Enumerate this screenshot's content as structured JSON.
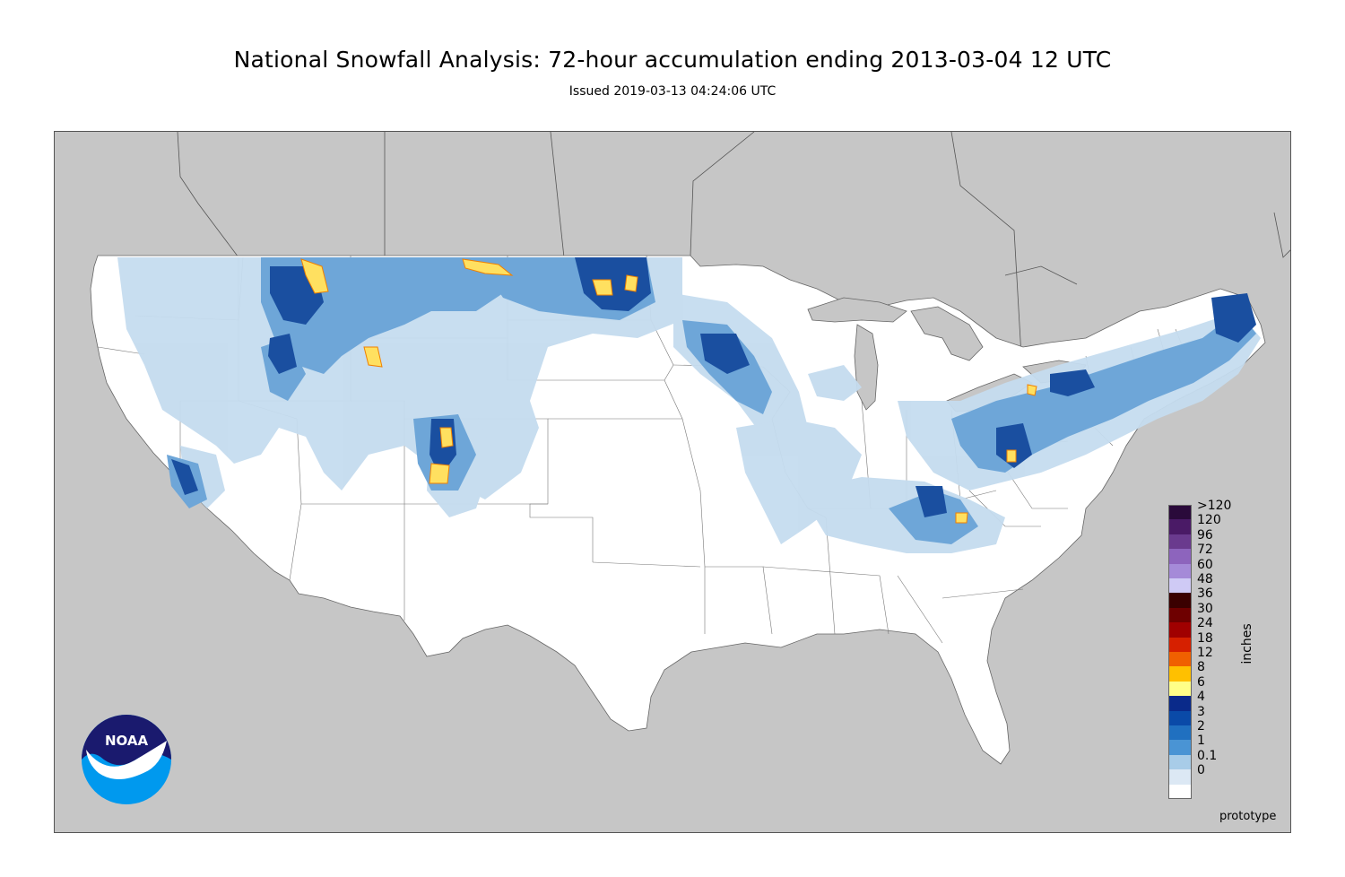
{
  "title": "National Snowfall Analysis: 72-hour accumulation ending 2013-03-04 12 UTC",
  "subtitle": "Issued 2019-03-13 04:24:06 UTC",
  "legend": {
    "unit": "inches",
    "items": [
      {
        "label": ">120",
        "color": "#2a0a3a"
      },
      {
        "label": "120",
        "color": "#4a1a66"
      },
      {
        "label": "96",
        "color": "#6a3a8e"
      },
      {
        "label": "72",
        "color": "#8d64bd"
      },
      {
        "label": "60",
        "color": "#a58ad8"
      },
      {
        "label": "48",
        "color": "#cfcaf5"
      },
      {
        "label": "36",
        "color": "#3a0000"
      },
      {
        "label": "30",
        "color": "#6e0000"
      },
      {
        "label": "24",
        "color": "#a00000"
      },
      {
        "label": "18",
        "color": "#d62000"
      },
      {
        "label": "12",
        "color": "#f06000"
      },
      {
        "label": "8",
        "color": "#ffc000"
      },
      {
        "label": "6",
        "color": "#ffff88"
      },
      {
        "label": "4",
        "color": "#0a2a8a"
      },
      {
        "label": "3",
        "color": "#0a4aa8"
      },
      {
        "label": "2",
        "color": "#2070c0"
      },
      {
        "label": "1",
        "color": "#4a94d4"
      },
      {
        "label": "0.1",
        "color": "#a8cce8"
      },
      {
        "label": "0",
        "color": "#dce8f4"
      },
      {
        "label": "",
        "color": "#ffffff"
      }
    ]
  },
  "footer_note": "prototype",
  "logo": {
    "text": "NOAA",
    "icon": "noaa-logo-icon"
  },
  "colors": {
    "background_land": "#c6c6c6",
    "no_snow": "#ffffff",
    "light_snow": "#c5dcef",
    "moderate_snow": "#6ea6d8",
    "heavy_snow": "#1a4fa0",
    "very_heavy_snow": "#0a2a8a",
    "extreme_snow": "#ffe060"
  }
}
